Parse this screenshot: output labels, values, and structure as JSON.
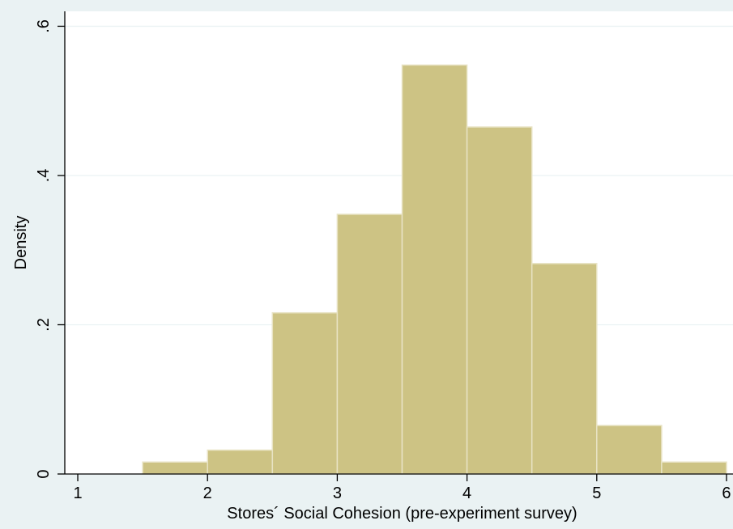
{
  "chart_data": {
    "type": "bar",
    "bins": [
      {
        "start": 1.5,
        "end": 2.0,
        "value": 0.016
      },
      {
        "start": 2.0,
        "end": 2.5,
        "value": 0.032
      },
      {
        "start": 2.5,
        "end": 3.0,
        "value": 0.216
      },
      {
        "start": 3.0,
        "end": 3.5,
        "value": 0.348
      },
      {
        "start": 3.5,
        "end": 4.0,
        "value": 0.548
      },
      {
        "start": 4.0,
        "end": 4.5,
        "value": 0.465
      },
      {
        "start": 4.5,
        "end": 5.0,
        "value": 0.282
      },
      {
        "start": 5.0,
        "end": 5.5,
        "value": 0.065
      },
      {
        "start": 5.5,
        "end": 6.0,
        "value": 0.016
      }
    ],
    "xlabel": "Stores´ Social Cohesion (pre-experiment survey)",
    "ylabel": "Density",
    "xlim": [
      0.9,
      6.05
    ],
    "ylim": [
      0,
      0.62
    ],
    "xticks": [
      {
        "value": 1,
        "label": "1"
      },
      {
        "value": 2,
        "label": "2"
      },
      {
        "value": 3,
        "label": "3"
      },
      {
        "value": 4,
        "label": "4"
      },
      {
        "value": 5,
        "label": "5"
      },
      {
        "value": 6,
        "label": "6"
      }
    ],
    "yticks": [
      {
        "value": 0,
        "label": "0"
      },
      {
        "value": 0.2,
        "label": ".2"
      },
      {
        "value": 0.4,
        "label": ".4"
      },
      {
        "value": 0.6,
        "label": ".6"
      }
    ],
    "grid": true,
    "colors": {
      "bar_fill": "#cdc384",
      "bar_stroke": "#e8e3c4",
      "plot_background": "#ffffff",
      "outer_background": "#eaf2f3",
      "grid": "#eaf2f3",
      "axis": "#000000"
    }
  }
}
